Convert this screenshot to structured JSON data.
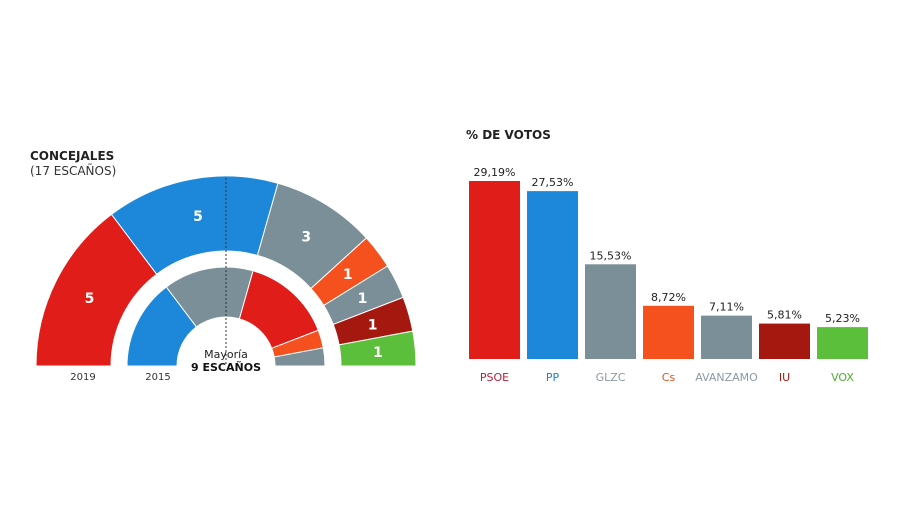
{
  "chart_data": [
    {
      "type": "hemicycle",
      "title": "CONCEJALES",
      "subtitle": "(17 ESCAÑOS)",
      "majority_label": "Mayoría",
      "majority_value": "9 ESCAÑOS",
      "rings": [
        {
          "label": "2019",
          "parties": [
            "PSOE",
            "PP",
            "GLZC",
            "Cs",
            "AVANZAMO",
            "IU",
            "VOX"
          ],
          "seats": [
            5,
            5,
            3,
            1,
            1,
            1,
            1
          ],
          "show_values": true
        },
        {
          "label": "2015",
          "parties": [
            "PP",
            "GLZC",
            "PSOE",
            "Cs",
            "AVANZAMO"
          ],
          "seats": [
            5,
            5,
            5,
            1,
            1
          ],
          "show_values": false
        }
      ]
    },
    {
      "type": "bar",
      "title": "% DE VOTOS",
      "categories": [
        "PSOE",
        "PP",
        "GLZC",
        "Cs",
        "AVANZAMO",
        "IU",
        "VOX"
      ],
      "values": [
        29.19,
        27.53,
        15.53,
        8.72,
        7.11,
        5.81,
        5.23
      ],
      "value_labels": [
        "29,19%",
        "27,53%",
        "15,53%",
        "8,72%",
        "7,11%",
        "5,81%",
        "5,23%"
      ],
      "ylim": [
        0,
        30
      ]
    }
  ],
  "colors": {
    "PSOE": "#e11d1a",
    "PP": "#1d88d9",
    "GLZC": "#7a8f97",
    "Cs": "#f5511e",
    "AVANZAMO": "#7a8f97",
    "IU": "#a5180f",
    "VOX": "#5cbf3b"
  },
  "label_colors": {
    "PSOE": "#b3203a",
    "PP": "#1d7fca",
    "GLZC": "#8a9aa2",
    "Cs": "#e2521e",
    "AVANZAMO": "#8a9aa2",
    "IU": "#a5180f",
    "VOX": "#4fae34"
  }
}
